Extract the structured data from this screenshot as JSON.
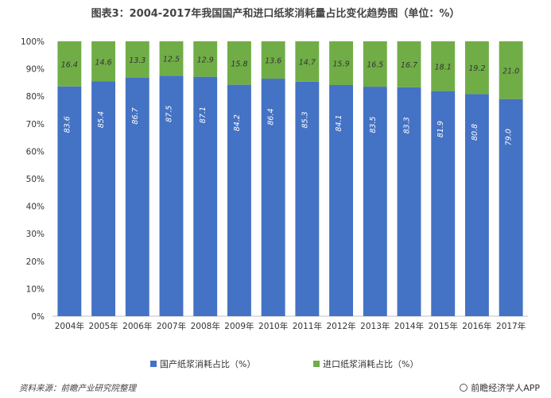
{
  "chart_data": {
    "type": "bar",
    "stacked": true,
    "title": "图表3：2004-2017年我国国产和进口纸浆消耗量占比变化趋势图（单位：%）",
    "categories": [
      "2004年",
      "2005年",
      "2006年",
      "2007年",
      "2008年",
      "2009年",
      "2010年",
      "2011年",
      "2012年",
      "2013年",
      "2014年",
      "2015年",
      "2016年",
      "2017年"
    ],
    "series": [
      {
        "name": "国产纸浆消耗占比（%）",
        "color": "#4472c4",
        "values": [
          83.6,
          85.4,
          86.7,
          87.5,
          87.1,
          84.2,
          86.4,
          85.3,
          84.1,
          83.5,
          83.3,
          81.9,
          80.8,
          79.0
        ],
        "labels": [
          "83.6",
          "85.4",
          "86.7",
          "87.5",
          "87.1",
          "84.2",
          "86.4",
          "85.3",
          "84.1",
          "83.5",
          "83.3",
          "81.9",
          "80.8",
          "79.0"
        ]
      },
      {
        "name": "进口纸浆消耗占比（%）",
        "color": "#70ad47",
        "values": [
          16.4,
          14.6,
          13.3,
          12.5,
          12.9,
          15.8,
          13.6,
          14.7,
          15.9,
          16.5,
          16.7,
          18.1,
          19.2,
          21.0
        ],
        "labels": [
          "16.4",
          "14.6",
          "13.3",
          "12.5",
          "12.9",
          "15.8",
          "13.6",
          "14.7",
          "15.9",
          "16.5",
          "16.7",
          "18.1",
          "19.2",
          "21.0"
        ]
      }
    ],
    "y_ticks": [
      "0%",
      "10%",
      "20%",
      "30%",
      "40%",
      "50%",
      "60%",
      "70%",
      "80%",
      "90%",
      "100%"
    ],
    "ylim": [
      0,
      100
    ],
    "legend_position": "bottom",
    "grid": false
  },
  "source_text": "资料来源：前瞻产业研究院整理",
  "brand_text": "前瞻经济学人APP"
}
